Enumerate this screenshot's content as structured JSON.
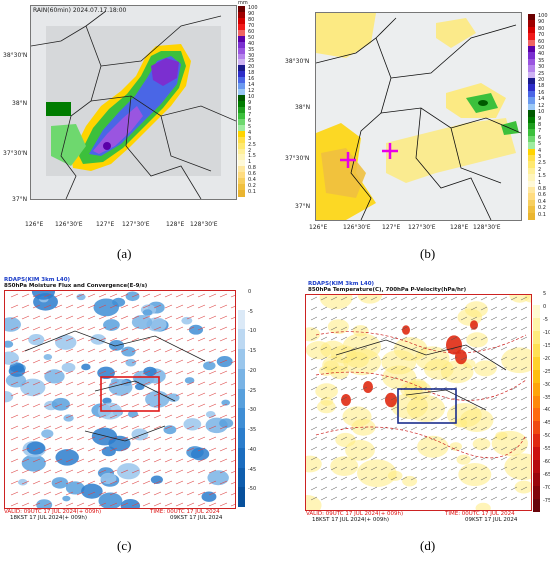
{
  "panels": {
    "a": {
      "label": "(a)",
      "title": "RAIN(60min) 2024.07.17.18:00",
      "colorbar_unit": "mm",
      "colorbar_levels": [
        "100",
        "90",
        "80",
        "70",
        "60",
        "50",
        "40",
        "35",
        "30",
        "25",
        "20",
        "18",
        "16",
        "14",
        "12",
        "10",
        "9",
        "8",
        "7",
        "6",
        "5",
        "4",
        "3",
        "2.5",
        "2",
        "1.5",
        "1",
        "0.8",
        "0.6",
        "0.4",
        "0.2",
        "0.1"
      ],
      "lat_ticks": [
        "38°30'N",
        "38°N",
        "37°30'N",
        "37°N"
      ],
      "lon_ticks": [
        "126°E",
        "126°30'E",
        "127°E",
        "127°30'E",
        "128°E",
        "128°30'E"
      ]
    },
    "b": {
      "label": "(b)",
      "colorbar_levels": [
        "100",
        "90",
        "80",
        "70",
        "60",
        "50",
        "40",
        "35",
        "30",
        "25",
        "20",
        "18",
        "16",
        "14",
        "12",
        "10",
        "9",
        "8",
        "7",
        "6",
        "5",
        "4",
        "3",
        "2.5",
        "2",
        "1.5",
        "1",
        "0.8",
        "0.6",
        "0.4",
        "0.2",
        "0.1"
      ],
      "lat_ticks": [
        "38°30'N",
        "38°N",
        "37°30'N",
        "37°N"
      ],
      "lon_ticks": [
        "126°E",
        "126°30'E",
        "127°E",
        "127°30'E",
        "128°E",
        "128°30'E"
      ]
    },
    "c": {
      "label": "(c)",
      "header_line1": "RDAPS(KIM 3km L40)",
      "header_line2": "850hPa Moisture Flux and Convergence(E-9/s)",
      "valid": "VALID: 09UTC 17 JUL 2024(+ 009h)",
      "valid_kst": "18KST 17 JUL 2024(+ 009h)",
      "time": "TIME: 00UTC 17 JUL 2024",
      "time_kst": "09KST 17 JUL 2024",
      "colorbar_levels": [
        "0",
        "-5",
        "-10",
        "-15",
        "-20",
        "-25",
        "-30",
        "-35",
        "-40",
        "-45",
        "-50"
      ]
    },
    "d": {
      "label": "(d)",
      "header_line1": "RDAPS(KIM 3km L40)",
      "header_line2": "850hPa Temperature(C), 700hPa P-Velocity(hPa/hr)",
      "valid": "VALID: 09UTC 17 JUL 2024(+ 009h)",
      "valid_kst": "18KST 17 JUL 2024(+ 009h)",
      "time": "TIME: 00UTC 17 JUL 2024",
      "time_kst": "09KST 17 JUL 2024",
      "colorbar_levels": [
        "5",
        "0",
        "-5",
        "-10",
        "-15",
        "-20",
        "-25",
        "-30",
        "-35",
        "-40",
        "-45",
        "-50",
        "-55",
        "-60",
        "-65",
        "-70",
        "-75"
      ]
    }
  },
  "colors": {
    "rain_scale": [
      "#6b0000",
      "#a00000",
      "#d40000",
      "#f01a1a",
      "#f06464",
      "#5a00a8",
      "#7b2fd0",
      "#9a55e0",
      "#b583ec",
      "#cfb3f4",
      "#1a1a8c",
      "#2d2dc8",
      "#4a66e6",
      "#6b9af0",
      "#9bc8f6",
      "#005a00",
      "#007c00",
      "#1e9e1e",
      "#3cc03c",
      "#6ed86e",
      "#a0eca0",
      "#ffd400",
      "#ffe04a",
      "#ffe970",
      "#fff09a",
      "#fff5bb",
      "#fff9d8",
      "#ffe8a0",
      "#ffdc80",
      "#f7cf5f",
      "#f0c040",
      "#eab530"
    ],
    "convergence_scale": [
      "#ffffff",
      "#dbe9f7",
      "#bcd8f2",
      "#9ac6ec",
      "#79b3e5",
      "#58a0dd",
      "#3f8ed5",
      "#2b7dcc",
      "#1b6dbf",
      "#0f5eae",
      "#07509c"
    ],
    "pvel_scale": [
      "#ffffff",
      "#fffbd2",
      "#fff4a8",
      "#ffeb7e",
      "#ffe055",
      "#ffd12c",
      "#ffbe10",
      "#ffa40c",
      "#ff880c",
      "#ff6a10",
      "#f04a12",
      "#e02a12",
      "#cc1210",
      "#b50a0e",
      "#9a060c",
      "#80040a",
      "#68040a"
    ],
    "highlight_box_c": "#e01818",
    "highlight_box_d": "#1a2d8c",
    "marker": "#e800e8"
  }
}
